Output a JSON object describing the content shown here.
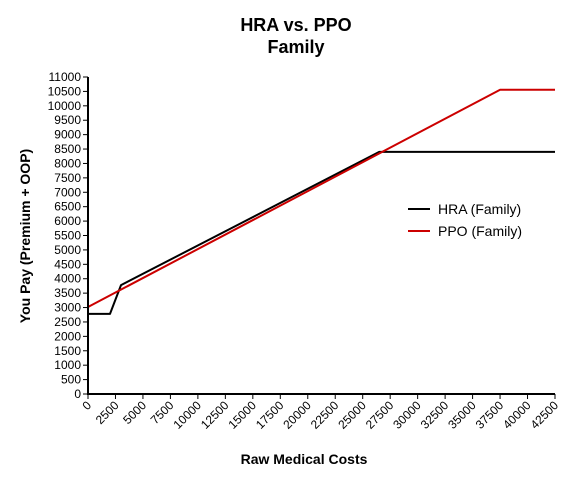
{
  "chart_data": {
    "type": "line",
    "title": "HRA vs. PPO",
    "subtitle": "Family",
    "xlabel": "Raw  Medical Costs",
    "ylabel": "You Pay (Premium + OOP)",
    "xlim": [
      0,
      42500
    ],
    "ylim": [
      0,
      11000
    ],
    "xticks": [
      0,
      2500,
      5000,
      7500,
      10000,
      12500,
      15000,
      17500,
      20000,
      22500,
      25000,
      27500,
      30000,
      32500,
      35000,
      37500,
      40000,
      42500
    ],
    "yticks": [
      0,
      500,
      1000,
      1500,
      2000,
      2500,
      3000,
      3500,
      4000,
      4500,
      5000,
      5500,
      6000,
      6500,
      7000,
      7500,
      8000,
      8500,
      9000,
      9500,
      10000,
      10500,
      11000
    ],
    "grid": false,
    "legend_position": "right",
    "series": [
      {
        "name": "HRA (Family)",
        "color": "#000000",
        "x": [
          0,
          2000,
          3000,
          26500,
          42500
        ],
        "y": [
          2780,
          2780,
          3780,
          8400,
          8400
        ]
      },
      {
        "name": "PPO (Family)",
        "color": "#cc0000",
        "x": [
          0,
          37500,
          42500
        ],
        "y": [
          3020,
          10560,
          10560
        ]
      }
    ]
  }
}
